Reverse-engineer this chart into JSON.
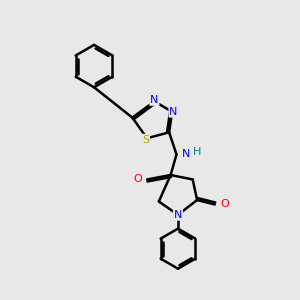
{
  "background_color": "#e8e8e8",
  "bond_color": "#000000",
  "atom_colors": {
    "N": "#0000ff",
    "O": "#ff0000",
    "S": "#aaaa00",
    "H": "#008080",
    "C": "#000000"
  },
  "lw": 1.8
}
